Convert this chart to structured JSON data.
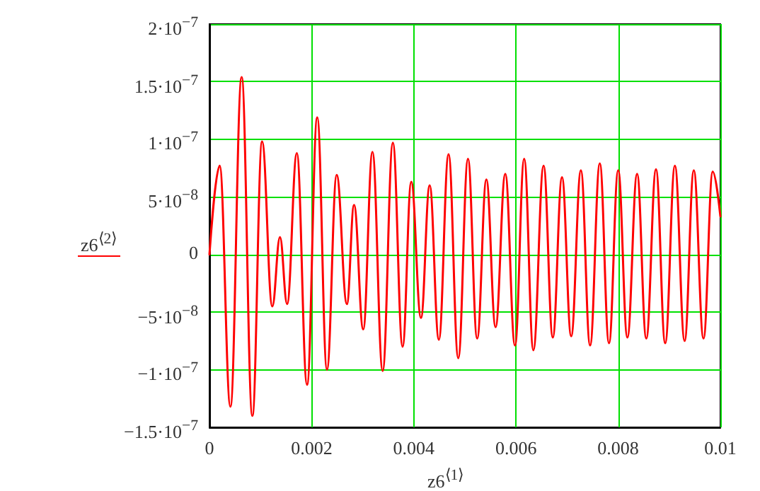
{
  "chart_data": {
    "type": "line",
    "xlabel": "z6$^{⟨1⟩}$",
    "ylabel": "z6$^{⟨2⟩}$",
    "xlim": [
      0,
      0.01
    ],
    "xticks": [
      0,
      0.002,
      0.004,
      0.006,
      0.008,
      0.01
    ],
    "ylim": [
      -1.5e-07,
      2e-07
    ],
    "yticks": [
      {
        "value": -1.5e-07,
        "label": "−1.5·10$^{−7}$"
      },
      {
        "value": -1e-07,
        "label": "−1·10$^{−7}$"
      },
      {
        "value": -5e-08,
        "label": "−5·10$^{−8}$"
      },
      0,
      {
        "value": 5e-08,
        "label": "5·10$^{−8}$"
      },
      {
        "value": 1e-07,
        "label": "1·10$^{−7}$"
      },
      {
        "value": 1.5e-07,
        "label": "1.5·10$^{−7}$"
      },
      {
        "value": 2e-07,
        "label": "2·10$^{−7}$"
      }
    ],
    "grid": true,
    "marker": "none",
    "line_style": "solid",
    "series": [
      {
        "color": "#ff0000",
        "x": [
          0,
          0.0002,
          0.00041,
          0.00063,
          0.00084,
          0.00103,
          0.00123,
          0.00138,
          0.00152,
          0.00171,
          0.00191,
          0.00211,
          0.0023,
          0.00249,
          0.00269,
          0.00283,
          0.00301,
          0.00319,
          0.00339,
          0.00359,
          0.00378,
          0.00395,
          0.00414,
          0.00431,
          0.00449,
          0.00468,
          0.00487,
          0.00506,
          0.00524,
          0.00542,
          0.0056,
          0.00579,
          0.00598,
          0.00616,
          0.00634,
          0.00654,
          0.00672,
          0.0069,
          0.00708,
          0.00727,
          0.00745,
          0.00764,
          0.00782,
          0.008,
          0.00818,
          0.00837,
          0.00855,
          0.00874,
          0.00892,
          0.00911,
          0.0093,
          0.00948,
          0.00967,
          0.00985,
          0.01
        ],
        "values": [
          0,
          7.7e-08,
          -1.32e-07,
          1.54e-07,
          -1.4e-07,
          9.8e-08,
          -4.5e-08,
          1.5e-08,
          -4.3e-08,
          8.8e-08,
          -1.13e-07,
          1.19e-07,
          -1e-07,
          6.9e-08,
          -4.3e-08,
          4.3e-08,
          -6.5e-08,
          8.9e-08,
          -1.01e-07,
          9.7e-08,
          -8e-08,
          6.3e-08,
          -5.5e-08,
          6e-08,
          -7.4e-08,
          8.7e-08,
          -9e-08,
          8.3e-08,
          -7.3e-08,
          6.5e-08,
          -6.3e-08,
          7e-08,
          -7.9e-08,
          8.3e-08,
          -8.3e-08,
          7.7e-08,
          -7.2e-08,
          6.7e-08,
          -7.1e-08,
          7.3e-08,
          -7.9e-08,
          7.9e-08,
          -7.7e-08,
          7.3e-08,
          -7.2e-08,
          7e-08,
          -7.3e-08,
          7.4e-08,
          -7.7e-08,
          7.7e-08,
          -7.5e-08,
          7.3e-08,
          -7.3e-08,
          7.2e-08,
          3.3e-08
        ]
      }
    ]
  }
}
